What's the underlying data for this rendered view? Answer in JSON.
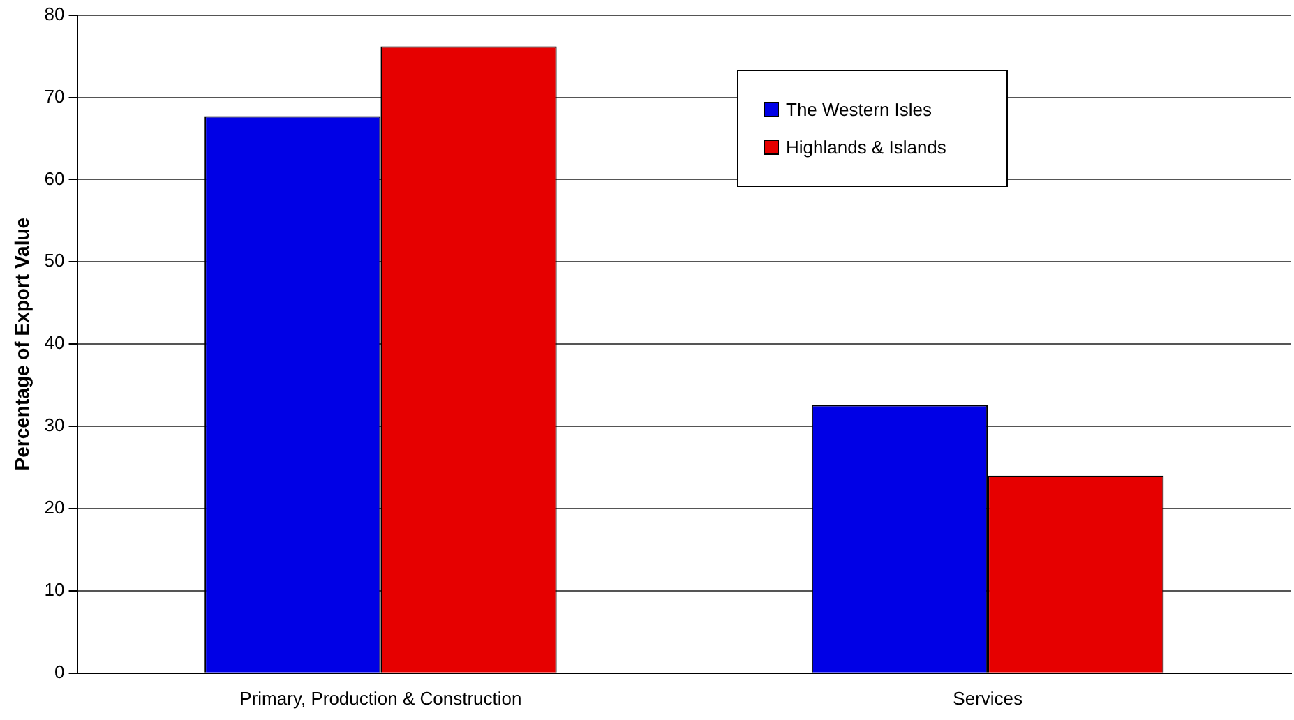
{
  "chart_data": {
    "type": "bar",
    "ylabel": "Percentage of Export Value",
    "categories": [
      "Primary, Production & Construction",
      "Services"
    ],
    "series": [
      {
        "name": "The Western Isles",
        "color": "#0000e6",
        "values": [
          67.7,
          32.6
        ]
      },
      {
        "name": "Highlands & Islands",
        "color": "#e60000",
        "values": [
          76.2,
          24.0
        ]
      }
    ],
    "ylim": [
      0,
      80
    ],
    "yticks": [
      0,
      10,
      20,
      30,
      40,
      50,
      60,
      70,
      80
    ],
    "grid": "y",
    "legend": "top right"
  }
}
